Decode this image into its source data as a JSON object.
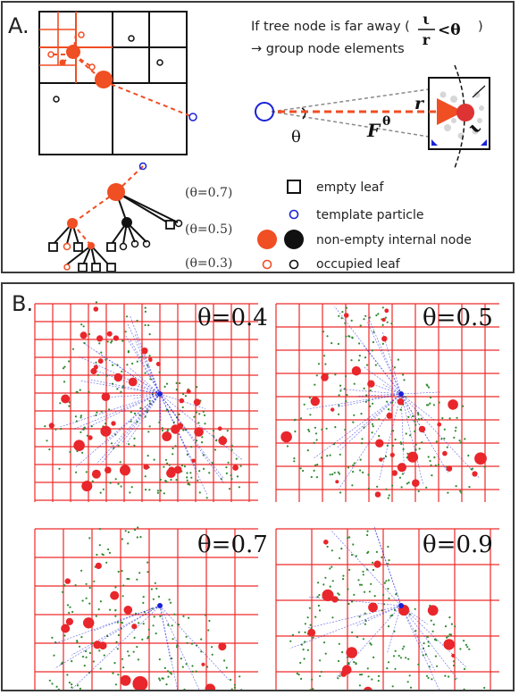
{
  "panel_a": {
    "label": "A.",
    "rule_text": "If tree node is far away (",
    "rule_close": ")",
    "rule_numerator": "ι",
    "rule_denominator": "r",
    "rule_less_than": "<θ",
    "rule_text_2": "→ group node elements",
    "r_label": "r",
    "iota_label": "ι",
    "theta_label": "θ",
    "force_label": "F",
    "force_superscript": "θ",
    "theta_values": [
      "(θ=0.7)",
      "(θ=0.5)",
      "(θ=0.3)"
    ],
    "legend": [
      {
        "label": "empty leaf",
        "icon": "square-icon"
      },
      {
        "label": "template particle",
        "icon": "blue-circle-icon"
      },
      {
        "label": "non-empty internal node",
        "icon": "filled-circle-icons"
      },
      {
        "label": "occupied leaf",
        "icon": "open-circle-icons"
      }
    ]
  },
  "panel_b": {
    "label": "B.",
    "subplots": [
      {
        "theta_label": "θ=0.4"
      },
      {
        "theta_label": "θ=0.5"
      },
      {
        "theta_label": "θ=0.7"
      },
      {
        "theta_label": "θ=0.9"
      }
    ]
  },
  "colors": {
    "orange": "#f04e23",
    "red": "#e8262b",
    "blue": "#1a22d6",
    "green": "#2f8a2f",
    "grid_red": "#ee2a2a",
    "black": "#111111",
    "gray": "#8a8a8a"
  }
}
